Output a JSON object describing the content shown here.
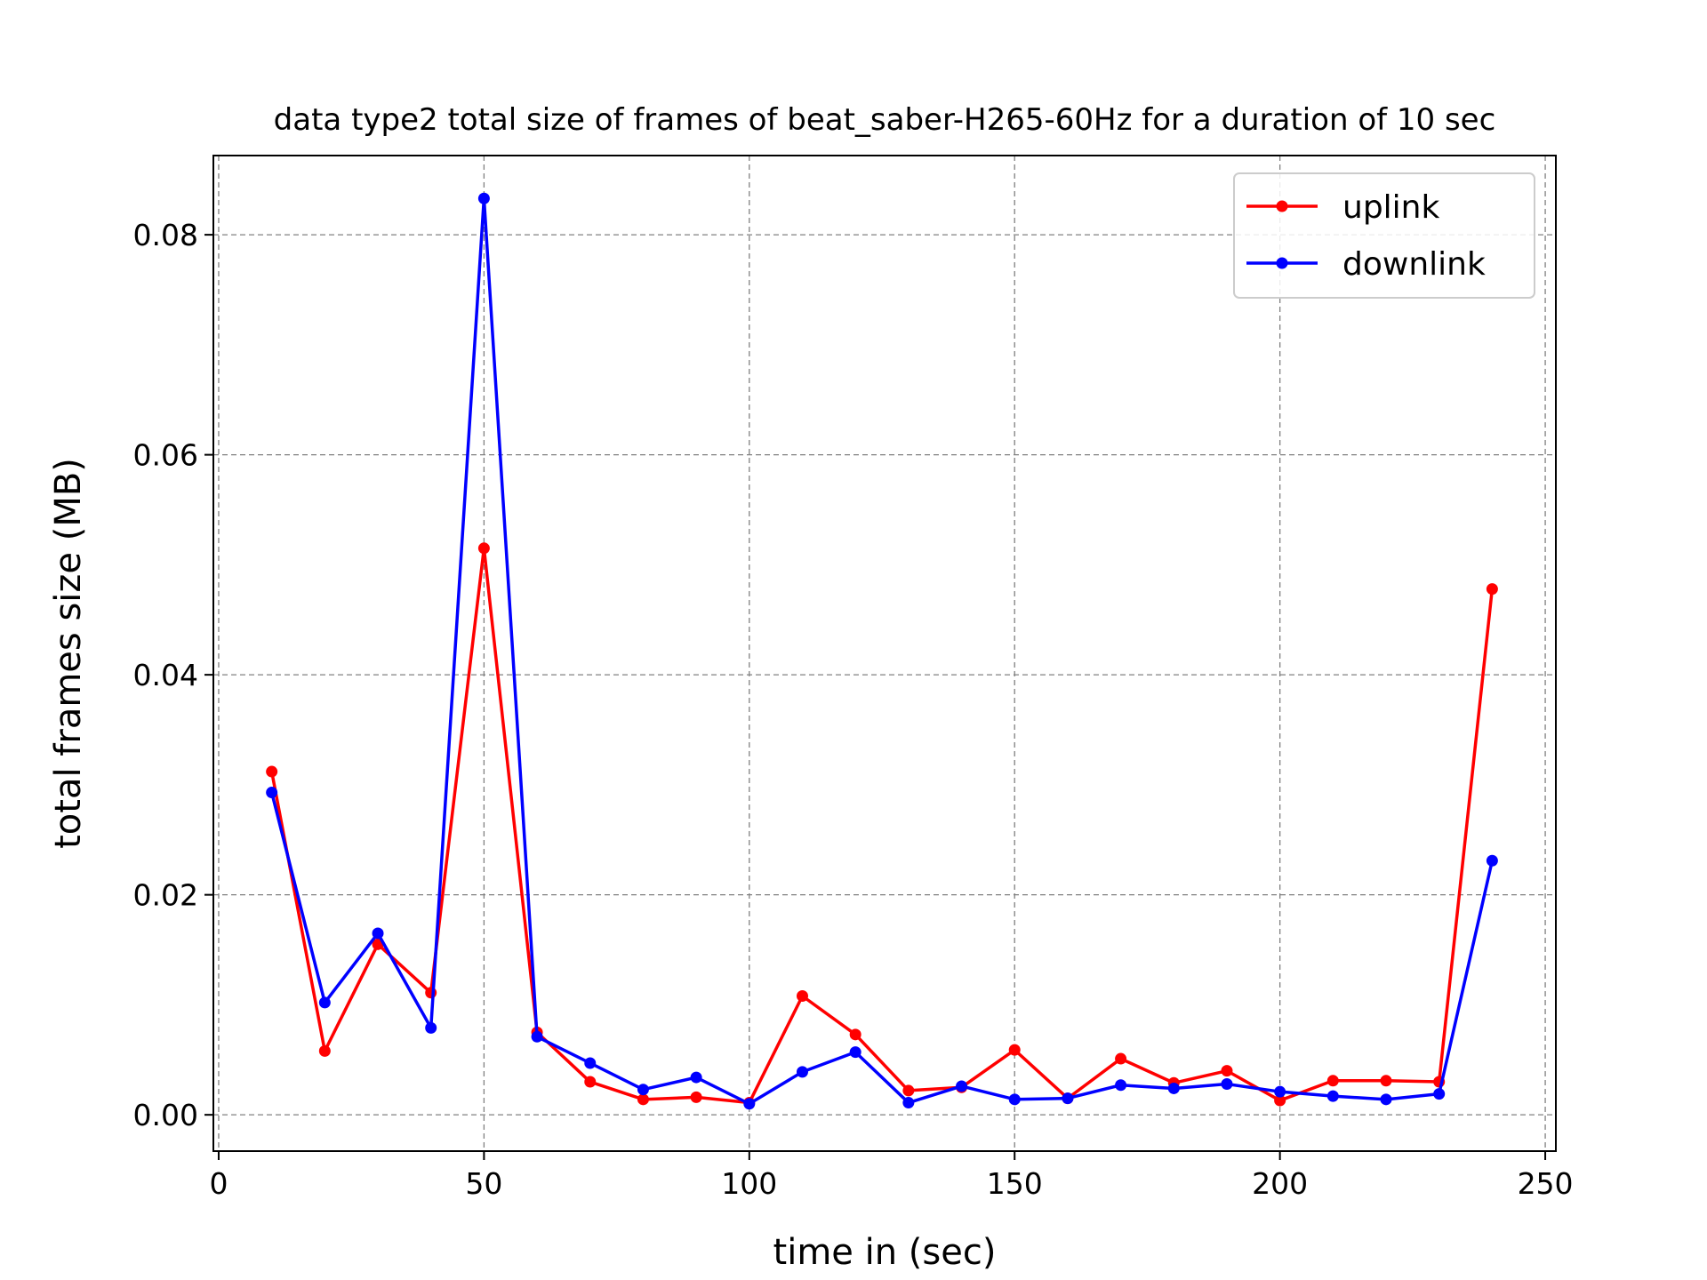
{
  "chart_data": {
    "type": "line",
    "title": "data type2 total size of frames of beat_saber-H265-60Hz for a duration of 10 sec",
    "xlabel": "time in (sec)",
    "ylabel": "total frames size (MB)",
    "xlim": [
      -1,
      252
    ],
    "ylim": [
      -0.0033,
      0.0872
    ],
    "xticks": [
      0,
      50,
      100,
      150,
      200,
      250
    ],
    "xtick_labels": [
      "0",
      "50",
      "100",
      "150",
      "200",
      "250"
    ],
    "yticks": [
      0.0,
      0.02,
      0.04,
      0.06,
      0.08
    ],
    "ytick_labels": [
      "0.00",
      "0.02",
      "0.04",
      "0.06",
      "0.08"
    ],
    "grid": true,
    "legend_position": "top-right",
    "x": [
      10,
      20,
      30,
      40,
      50,
      60,
      70,
      80,
      90,
      100,
      110,
      120,
      130,
      140,
      150,
      160,
      170,
      180,
      190,
      200,
      210,
      220,
      230,
      240
    ],
    "series": [
      {
        "name": "uplink",
        "color": "#ff0000",
        "values": [
          0.0312,
          0.0058,
          0.0155,
          0.0111,
          0.0515,
          0.0075,
          0.003,
          0.0014,
          0.0016,
          0.0011,
          0.0108,
          0.0073,
          0.0022,
          0.0025,
          0.0059,
          0.0015,
          0.0051,
          0.0029,
          0.004,
          0.0013,
          0.0031,
          0.0031,
          0.003,
          0.0478
        ]
      },
      {
        "name": "downlink",
        "color": "#0000ff",
        "values": [
          0.0293,
          0.0102,
          0.0165,
          0.0079,
          0.0833,
          0.0071,
          0.0047,
          0.0023,
          0.0034,
          0.001,
          0.0039,
          0.0057,
          0.0011,
          0.0026,
          0.0014,
          0.0015,
          0.0027,
          0.0024,
          0.0028,
          0.0021,
          0.0017,
          0.0014,
          0.0019,
          0.0231
        ]
      }
    ]
  }
}
